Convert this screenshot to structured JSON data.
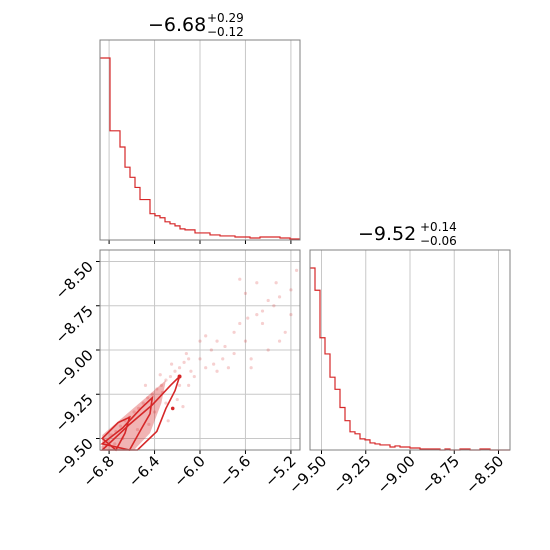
{
  "chart_data": {
    "type": "corner",
    "color": "#d62728",
    "grid": true,
    "panels": [
      {
        "id": "hist1",
        "type": "histogram",
        "title": {
          "median": "−6.68",
          "plus": "+0.29",
          "minus": "−0.12"
        },
        "xlim": [
          -6.88,
          -5.12
        ],
        "xticks": [
          -6.8,
          -6.4,
          -6.0,
          -5.6,
          -5.2
        ],
        "bins": {
          "start": -6.88,
          "width": 0.044,
          "counts": [
            180,
            180,
            108,
            108,
            92,
            72,
            62,
            52,
            40,
            40,
            26,
            24,
            22,
            18,
            16,
            14,
            11,
            10,
            10,
            7,
            7,
            7,
            5,
            5,
            4,
            4,
            4,
            3,
            3,
            3,
            2,
            2,
            3,
            3,
            3,
            3,
            2,
            2,
            1,
            1
          ]
        }
      },
      {
        "id": "hist2",
        "type": "histogram",
        "title": {
          "median": "−9.52",
          "plus": "+0.14",
          "minus": "−0.06"
        },
        "xlim": [
          -9.565,
          -8.435
        ],
        "xticks": [
          -9.5,
          -9.25,
          -9.0,
          -8.75,
          -8.5
        ],
        "xtick_labels": [
          "−9.50",
          "−9.25",
          "−9.00",
          "−8.75",
          "−8.50"
        ],
        "bins": {
          "start": -9.565,
          "width": 0.02825,
          "counts": [
            180,
            158,
            111,
            95,
            72,
            60,
            42,
            29,
            18,
            16,
            11,
            10,
            7,
            6,
            5,
            5,
            3,
            4,
            3,
            3,
            2,
            2,
            1,
            1,
            1,
            1,
            0,
            1,
            0,
            0,
            1,
            1,
            0,
            0,
            1,
            1,
            0,
            0,
            0,
            0
          ]
        }
      },
      {
        "id": "joint",
        "type": "scatter-contour",
        "xlim": [
          -6.88,
          -5.12
        ],
        "ylim": [
          -9.565,
          -8.435
        ],
        "xticks": [
          -6.8,
          -6.4,
          -6.0,
          -5.6,
          -5.2
        ],
        "xtick_labels": [
          "−6.8",
          "−6.4",
          "−6.0",
          "−5.6",
          "−5.2"
        ],
        "yticks": [
          -8.5,
          -8.75,
          -9.0,
          -9.25,
          -9.5
        ],
        "ytick_labels": [
          "−8.50",
          "−8.75",
          "−9.00",
          "−9.25",
          "−9.50"
        ],
        "points": [
          [
            -6.86,
            -9.55
          ],
          [
            -6.82,
            -9.52
          ],
          [
            -6.78,
            -9.48
          ],
          [
            -6.74,
            -9.46
          ],
          [
            -6.7,
            -9.43
          ],
          [
            -6.66,
            -9.4
          ],
          [
            -6.62,
            -9.38
          ],
          [
            -6.58,
            -9.35
          ],
          [
            -6.54,
            -9.33
          ],
          [
            -6.5,
            -9.3
          ],
          [
            -6.46,
            -9.27
          ],
          [
            -6.42,
            -9.25
          ],
          [
            -6.38,
            -9.22
          ],
          [
            -6.34,
            -9.2
          ],
          [
            -6.3,
            -9.17
          ],
          [
            -6.26,
            -9.15
          ],
          [
            -6.22,
            -9.12
          ],
          [
            -6.18,
            -9.1
          ],
          [
            -6.14,
            -9.07
          ],
          [
            -6.1,
            -9.05
          ],
          [
            -6.4,
            -9.35
          ],
          [
            -6.3,
            -9.3
          ],
          [
            -6.2,
            -9.28
          ],
          [
            -6.1,
            -9.2
          ],
          [
            -6.05,
            -9.15
          ],
          [
            -6.0,
            -9.05
          ],
          [
            -5.95,
            -9.1
          ],
          [
            -5.9,
            -9.0
          ],
          [
            -5.85,
            -8.95
          ],
          [
            -5.8,
            -9.05
          ],
          [
            -5.75,
            -9.1
          ],
          [
            -5.7,
            -8.9
          ],
          [
            -5.65,
            -8.85
          ],
          [
            -5.6,
            -8.95
          ],
          [
            -5.55,
            -9.05
          ],
          [
            -5.5,
            -8.8
          ],
          [
            -5.45,
            -8.85
          ],
          [
            -5.4,
            -9.0
          ],
          [
            -5.35,
            -8.75
          ],
          [
            -5.3,
            -8.7
          ],
          [
            -5.25,
            -8.9
          ],
          [
            -5.2,
            -8.8
          ],
          [
            -5.15,
            -8.55
          ],
          [
            -5.5,
            -8.62
          ],
          [
            -5.6,
            -8.68
          ],
          [
            -5.45,
            -8.78
          ],
          [
            -5.3,
            -8.95
          ],
          [
            -5.55,
            -9.1
          ],
          [
            -5.85,
            -9.12
          ],
          [
            -6.0,
            -8.95
          ],
          [
            -6.12,
            -9.02
          ],
          [
            -6.25,
            -9.08
          ],
          [
            -6.35,
            -9.14
          ],
          [
            -5.7,
            -9.02
          ],
          [
            -5.95,
            -8.92
          ],
          [
            -5.4,
            -8.72
          ],
          [
            -5.2,
            -8.66
          ],
          [
            -6.15,
            -9.32
          ],
          [
            -6.28,
            -9.4
          ],
          [
            -6.45,
            -9.42
          ],
          [
            -6.55,
            -9.45
          ],
          [
            -6.68,
            -9.5
          ],
          [
            -6.75,
            -9.53
          ],
          [
            -5.65,
            -8.6
          ],
          [
            -5.33,
            -8.62
          ],
          [
            -5.58,
            -8.82
          ],
          [
            -6.48,
            -9.2
          ],
          [
            -6.33,
            -9.24
          ],
          [
            -6.18,
            -9.2
          ],
          [
            -5.78,
            -8.98
          ],
          [
            -5.88,
            -9.08
          ],
          [
            -6.08,
            -9.12
          ]
        ],
        "contours": [
          [
            [
              -6.86,
              -9.565
            ],
            [
              -6.62,
              -9.42
            ],
            [
              -6.42,
              -9.31
            ],
            [
              -6.26,
              -9.2
            ],
            [
              -6.18,
              -9.15
            ],
            [
              -6.22,
              -9.23
            ],
            [
              -6.3,
              -9.33
            ],
            [
              -6.38,
              -9.46
            ],
            [
              -6.55,
              -9.565
            ]
          ],
          [
            [
              -6.86,
              -9.53
            ],
            [
              -6.68,
              -9.44
            ],
            [
              -6.52,
              -9.33
            ],
            [
              -6.42,
              -9.27
            ],
            [
              -6.44,
              -9.36
            ],
            [
              -6.52,
              -9.45
            ],
            [
              -6.62,
              -9.565
            ]
          ],
          [
            [
              -6.86,
              -9.5
            ],
            [
              -6.72,
              -9.41
            ],
            [
              -6.62,
              -9.38
            ],
            [
              -6.66,
              -9.47
            ],
            [
              -6.74,
              -9.565
            ]
          ]
        ],
        "fill_contour": [
          [
            -6.86,
            -9.565
          ],
          [
            -6.86,
            -9.48
          ],
          [
            -6.66,
            -9.37
          ],
          [
            -6.46,
            -9.26
          ],
          [
            -6.3,
            -9.17
          ],
          [
            -6.34,
            -9.3
          ],
          [
            -6.44,
            -9.47
          ],
          [
            -6.58,
            -9.565
          ]
        ]
      }
    ]
  }
}
